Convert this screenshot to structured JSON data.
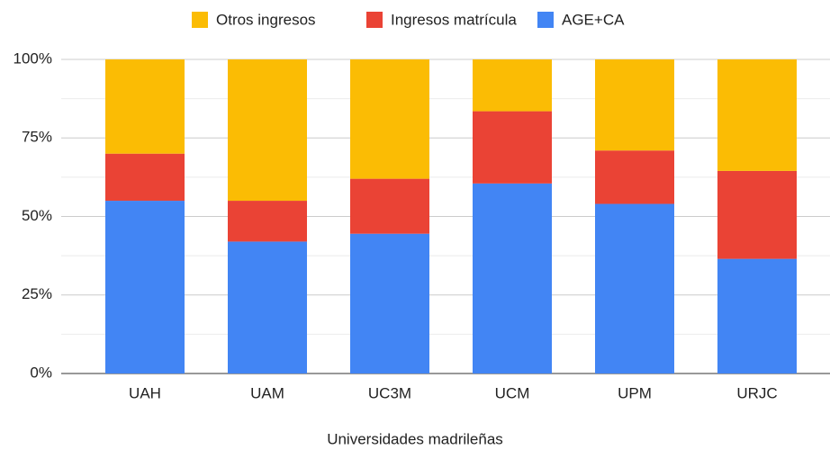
{
  "chart_data": {
    "type": "stacked_bar",
    "x_label": "Universidades madrileñas",
    "categories": [
      "UAH",
      "UAM",
      "UC3M",
      "UCM",
      "UPM",
      "URJC"
    ],
    "series": [
      {
        "name": "AGE+CA",
        "color": "#4285f4",
        "values": [
          55,
          42,
          44.5,
          60.5,
          54,
          36.5
        ]
      },
      {
        "name": "Ingresos matrícula",
        "color": "#ea4335",
        "values": [
          15,
          13,
          17.5,
          23,
          17,
          28
        ]
      },
      {
        "name": "Otros ingresos",
        "color": "#fbbc04",
        "values": [
          30,
          45,
          38,
          16.5,
          29,
          35.5
        ]
      }
    ],
    "ylim": [
      0,
      100
    ],
    "yticks": [
      {
        "value": 0,
        "label": "0%"
      },
      {
        "value": 25,
        "label": "25%"
      },
      {
        "value": 50,
        "label": "50%"
      },
      {
        "value": 75,
        "label": "75%"
      },
      {
        "value": 100,
        "label": "100%"
      }
    ],
    "minor_yticks": [
      12.5,
      37.5,
      62.5,
      87.5
    ],
    "grid": true,
    "legend": "top"
  }
}
